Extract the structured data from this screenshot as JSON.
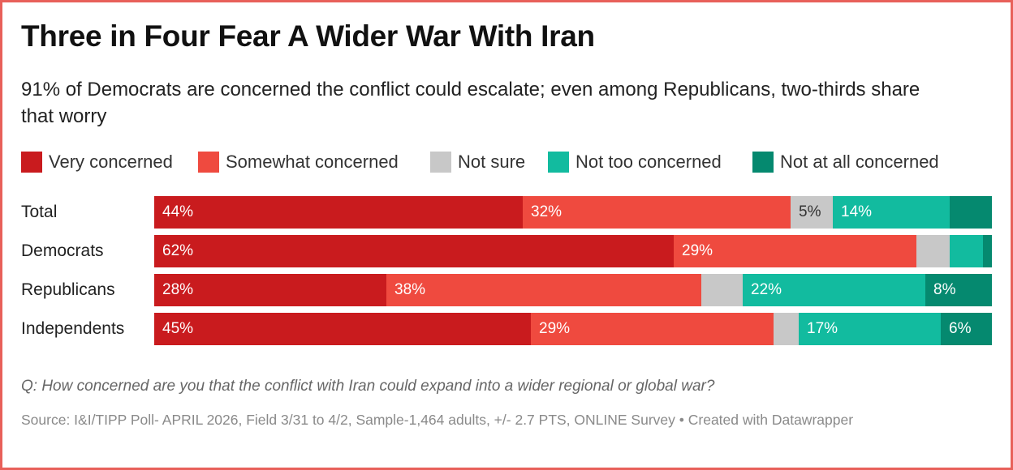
{
  "title": "Three in Four Fear A Wider War With Iran",
  "subtitle": "91% of Democrats are concerned the conflict could escalate; even among Republicans, two-thirds share that worry",
  "legend": [
    {
      "label": "Very concerned",
      "color": "#c91b1e"
    },
    {
      "label": "Somewhat concerned",
      "color": "#ef4a3f"
    },
    {
      "label": "Not sure",
      "color": "#c8c8c8"
    },
    {
      "label": "Not too concerned",
      "color": "#12bb9f"
    },
    {
      "label": "Not at all concerned",
      "color": "#05896f"
    }
  ],
  "chart_data": {
    "type": "bar",
    "orientation": "horizontal-stacked-100",
    "categories": [
      "Total",
      "Democrats",
      "Republicans",
      "Independents"
    ],
    "series": [
      {
        "name": "Very concerned",
        "values": [
          44,
          62,
          28,
          45
        ],
        "labels": [
          "44%",
          "62%",
          "28%",
          "45%"
        ]
      },
      {
        "name": "Somewhat concerned",
        "values": [
          32,
          29,
          38,
          29
        ],
        "labels": [
          "32%",
          "29%",
          "38%",
          "29%"
        ]
      },
      {
        "name": "Not sure",
        "values": [
          5,
          4,
          5,
          3
        ],
        "labels": [
          "5%",
          "",
          "",
          ""
        ]
      },
      {
        "name": "Not too concerned",
        "values": [
          14,
          4,
          22,
          17
        ],
        "labels": [
          "14%",
          "",
          "22%",
          "17%"
        ]
      },
      {
        "name": "Not at all concerned",
        "values": [
          5,
          1,
          8,
          6
        ],
        "labels": [
          "",
          "",
          "8%",
          "6%"
        ]
      }
    ],
    "xlim": [
      0,
      100
    ],
    "title": "Three in Four Fear A Wider War With Iran"
  },
  "question": "Q: How concerned are you that the conflict with Iran could expand into a wider regional or global war?",
  "source": "Source: I&I/TIPP Poll- APRIL 2026, Field 3/31 to 4/2, Sample-1,464 adults, +/- 2.7 PTS, ONLINE Survey • Created with Datawrapper"
}
